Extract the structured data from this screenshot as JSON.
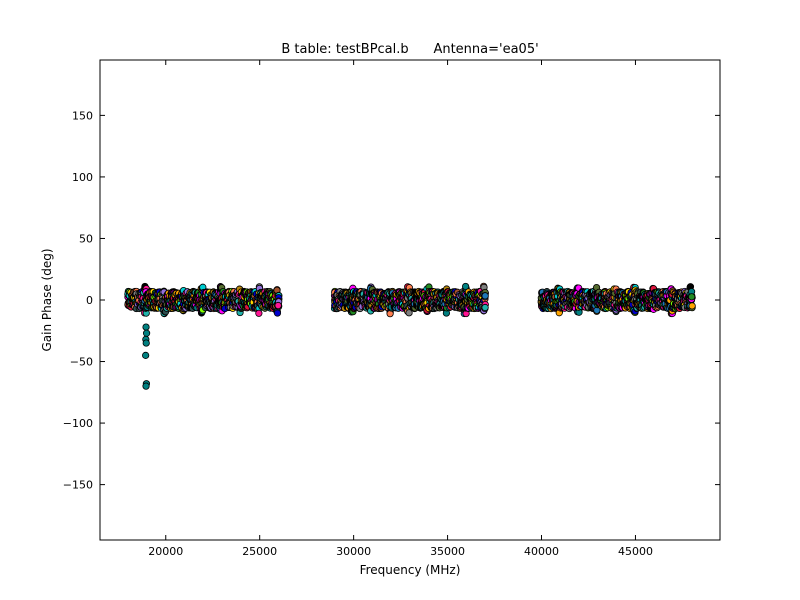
{
  "chart_data": {
    "type": "scatter",
    "title": "B table: testBPcal.b      Antenna='ea05'",
    "xlabel": "Frequency (MHz)",
    "ylabel": "Gain Phase (deg)",
    "xlim": [
      16500,
      49500
    ],
    "ylim": [
      -195,
      195
    ],
    "xticks": [
      20000,
      25000,
      30000,
      35000,
      40000,
      45000
    ],
    "xtick_labels": [
      "20000",
      "25000",
      "30000",
      "35000",
      "40000",
      "45000"
    ],
    "yticks": [
      150,
      100,
      50,
      0,
      -50,
      -100,
      -150
    ],
    "ytick_labels": [
      "150",
      "100",
      "50",
      "0",
      "−50",
      "−100",
      "−150"
    ],
    "grid": false,
    "marker": "circle",
    "marker_edge_color": "#000000",
    "palette": [
      "#1f77b4",
      "#008080",
      "#ff00ff",
      "#ffa500",
      "#228b22",
      "#800080",
      "#dc143c",
      "#a0522d",
      "#7fff00",
      "#00ced1",
      "#ffd700",
      "#0000cd",
      "#ff7f50",
      "#808080",
      "#2f4f4f",
      "#9370db",
      "#ff1493",
      "#20b2aa",
      "#b8860b",
      "#556b2f",
      "#000000"
    ],
    "series": [
      {
        "frequency_band_mhz": [
          18000,
          26000
        ],
        "phase_range_deg": [
          -15,
          15
        ],
        "spw_starts_mhz": [
          18000,
          19000,
          20000,
          21000,
          22000,
          23000,
          24000,
          25000
        ]
      },
      {
        "frequency_band_mhz": [
          29000,
          37000
        ],
        "phase_range_deg": [
          -20,
          15
        ],
        "spw_starts_mhz": [
          29000,
          30000,
          31000,
          32000,
          33000,
          34000,
          35000,
          36000
        ]
      },
      {
        "frequency_band_mhz": [
          40000,
          48000
        ],
        "phase_range_deg": [
          -22,
          14
        ],
        "spw_starts_mhz": [
          40000,
          41000,
          42000,
          43000,
          44000,
          45000,
          46000,
          47000
        ]
      }
    ],
    "outliers": {
      "color": "#008080",
      "x": [
        18950,
        18980,
        18940,
        18960,
        18930,
        18970,
        18950
      ],
      "y": [
        -22,
        -27,
        -32,
        -35,
        -45,
        -68,
        -70
      ]
    }
  }
}
